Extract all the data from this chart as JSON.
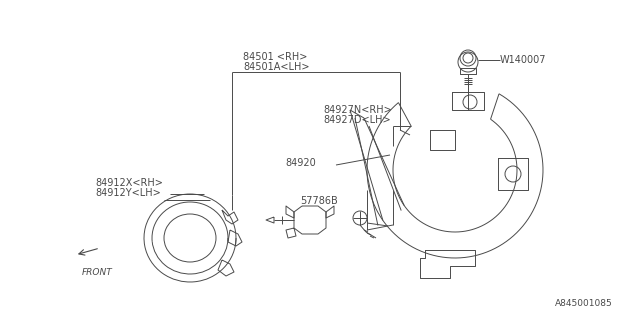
{
  "bg_color": "#ffffff",
  "line_color": "#4a4a4a",
  "title_code": "A845001085",
  "labels": {
    "part1": "84501 <RH>",
    "part1b": "84501A<LH>",
    "part2": "84927N<RH>",
    "part2b": "84927D<LH>",
    "part3": "84920",
    "part4": "57786B",
    "part5": "84912X<RH>",
    "part5b": "84912Y<LH>",
    "part6": "W140007",
    "front": "FRONT"
  },
  "figsize": [
    6.4,
    3.2
  ],
  "dpi": 100
}
